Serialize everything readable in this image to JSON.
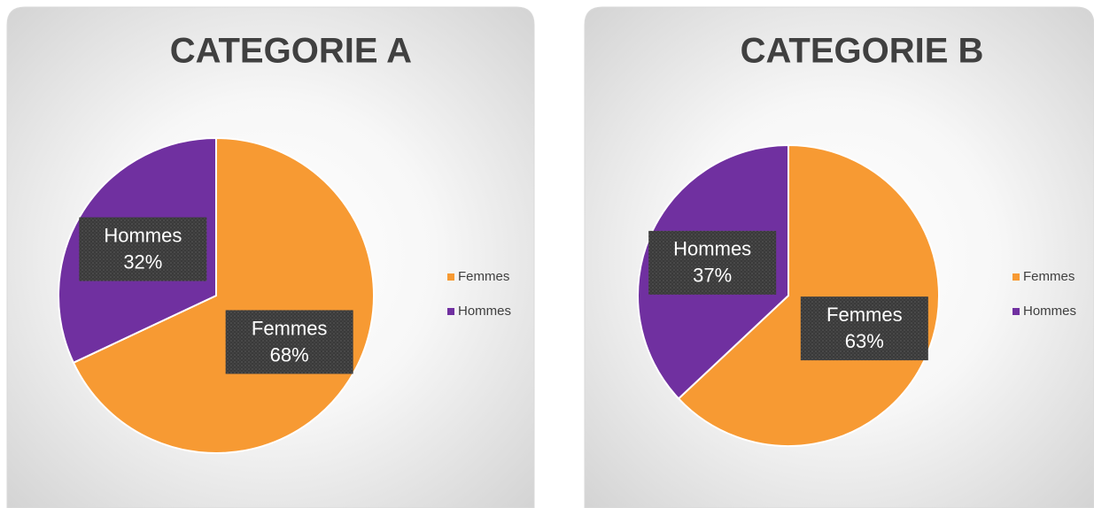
{
  "chart_data": [
    {
      "type": "pie",
      "title": "CATEGORIE A",
      "categories": [
        "Femmes",
        "Hommes"
      ],
      "values": [
        68,
        32
      ],
      "value_labels": [
        "68%",
        "32%"
      ],
      "colors": [
        "#F79A33",
        "#7030A0"
      ],
      "legend": "right"
    },
    {
      "type": "pie",
      "title": "CATEGORIE B",
      "categories": [
        "Femmes",
        "Hommes"
      ],
      "values": [
        63,
        37
      ],
      "value_labels": [
        "63%",
        "37%"
      ],
      "colors": [
        "#F79A33",
        "#7030A0"
      ],
      "legend": "right"
    }
  ]
}
